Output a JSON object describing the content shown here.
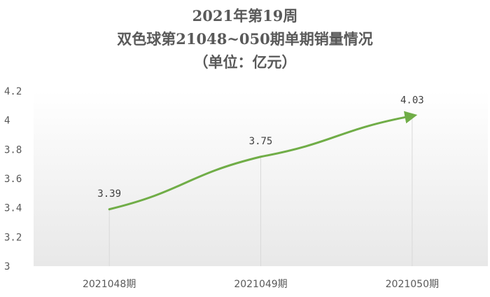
{
  "chart_data": {
    "type": "line",
    "title": "2021年第19周",
    "subtitle": "双色球第21048~050期单期销量情况",
    "unit_note": "（单位：亿元）",
    "categories": [
      "2021048期",
      "2021049期",
      "2021050期"
    ],
    "series": [
      {
        "values": [
          3.39,
          3.75,
          4.03
        ]
      }
    ],
    "data_labels": [
      "3.39",
      "3.75",
      "4.03"
    ],
    "y_ticks": [
      "3",
      "3.2",
      "3.4",
      "3.6",
      "3.8",
      "4",
      "4.2"
    ],
    "ylim": [
      3,
      4.2
    ],
    "grid": false,
    "colors": {
      "line": "#70ad47",
      "fill_top": "#ffffff",
      "fill_bottom": "#e8e8e8",
      "text": "#595959",
      "drop_line": "#d9d9d9"
    }
  }
}
